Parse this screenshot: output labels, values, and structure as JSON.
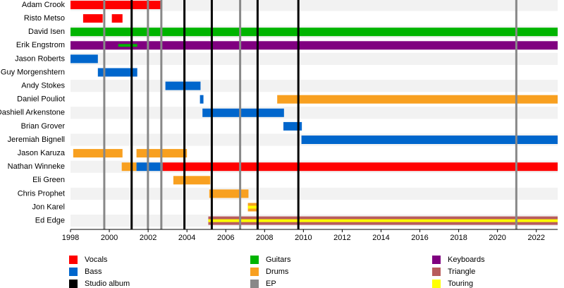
{
  "chart_data": {
    "type": "timeline",
    "xlim": [
      1998,
      2023.1
    ],
    "xticks": [
      1998,
      2000,
      2002,
      2004,
      2006,
      2008,
      2010,
      2012,
      2014,
      2016,
      2018,
      2020,
      2022
    ],
    "roles": [
      {
        "name": "Vocals",
        "color": "#ff0000"
      },
      {
        "name": "Bass",
        "color": "#0066cc"
      },
      {
        "name": "Studio album",
        "color": "#000000"
      },
      {
        "name": "Guitars",
        "color": "#00b400"
      },
      {
        "name": "Drums",
        "color": "#f8a020"
      },
      {
        "name": "EP",
        "color": "#888888"
      },
      {
        "name": "Keyboards",
        "color": "#800080"
      },
      {
        "name": "Triangle",
        "color": "#b85c5c"
      },
      {
        "name": "Touring",
        "color": "#ffff00"
      }
    ],
    "members": [
      {
        "name": "Adam Crook",
        "bars": [
          {
            "role": "Vocals",
            "start": 1998,
            "end": 2002.64
          }
        ]
      },
      {
        "name": "Risto Metso",
        "bars": [
          {
            "role": "Vocals",
            "start": 1998.65,
            "end": 1999.66
          },
          {
            "role": "Vocals",
            "start": 2000.13,
            "end": 2000.68
          }
        ]
      },
      {
        "name": "David Isen",
        "bars": [
          {
            "role": "Guitars",
            "start": 1998,
            "end": 2023.1
          }
        ]
      },
      {
        "name": "Erik Engstrom",
        "bars": [
          {
            "role": "Keyboards",
            "start": 1998,
            "end": 2023.1
          },
          {
            "role": "Guitars",
            "start": 2000.46,
            "end": 2001.44,
            "thin": true
          }
        ]
      },
      {
        "name": "Jason Roberts",
        "bars": [
          {
            "role": "Bass",
            "start": 1998,
            "end": 1999.41
          }
        ]
      },
      {
        "name": "Guy Morgenshtern",
        "bars": [
          {
            "role": "Bass",
            "start": 1999.41,
            "end": 2001.44
          }
        ]
      },
      {
        "name": "Andy Stokes",
        "bars": [
          {
            "role": "Bass",
            "start": 2002.89,
            "end": 2004.7
          }
        ]
      },
      {
        "name": "Daniel Pouliot",
        "bars": [
          {
            "role": "Bass",
            "start": 2004.67,
            "end": 2004.85
          },
          {
            "role": "Drums",
            "start": 2008.65,
            "end": 2023.1
          }
        ]
      },
      {
        "name": "Dashiell Arkenstone",
        "bars": [
          {
            "role": "Bass",
            "start": 2004.8,
            "end": 2009.0
          }
        ]
      },
      {
        "name": "Brian Grover",
        "bars": [
          {
            "role": "Bass",
            "start": 2008.97,
            "end": 2009.92
          }
        ]
      },
      {
        "name": "Jeremiah Bignell",
        "bars": [
          {
            "role": "Bass",
            "start": 2009.9,
            "end": 2023.1
          }
        ]
      },
      {
        "name": "Jason Karuza",
        "bars": [
          {
            "role": "Drums",
            "start": 1998.14,
            "end": 2000.68
          },
          {
            "role": "Drums",
            "start": 2001.4,
            "end": 2004.0
          }
        ]
      },
      {
        "name": "Nathan Winneke",
        "bars": [
          {
            "role": "Drums",
            "start": 2000.64,
            "end": 2001.4
          },
          {
            "role": "Bass",
            "start": 2001.4,
            "end": 2002.75
          },
          {
            "role": "Vocals",
            "start": 2002.75,
            "end": 2023.1
          }
        ]
      },
      {
        "name": "Eli Green",
        "bars": [
          {
            "role": "Drums",
            "start": 2003.3,
            "end": 2005.2
          }
        ]
      },
      {
        "name": "Chris Prophet",
        "bars": [
          {
            "role": "Drums",
            "start": 2005.15,
            "end": 2007.17
          }
        ]
      },
      {
        "name": "Jon Karel",
        "bars": [
          {
            "role": "Drums",
            "start": 2007.14,
            "end": 2007.68
          },
          {
            "role": "Touring",
            "start": 2007.14,
            "end": 2007.68,
            "thin": true
          }
        ]
      },
      {
        "name": "Ed Edge",
        "bars": [
          {
            "role": "Triangle",
            "start": 2005.1,
            "end": 2023.1
          },
          {
            "role": "Touring",
            "start": 2005.1,
            "end": 2023.1,
            "thin": true
          }
        ]
      }
    ],
    "releases": [
      {
        "role": "Studio album",
        "years": [
          2001.15,
          2003.87,
          2005.28,
          2007.64,
          2009.74
        ]
      },
      {
        "role": "EP",
        "years": [
          1999.74,
          2001.99,
          2002.68,
          2006.74,
          2020.97
        ]
      }
    ]
  }
}
